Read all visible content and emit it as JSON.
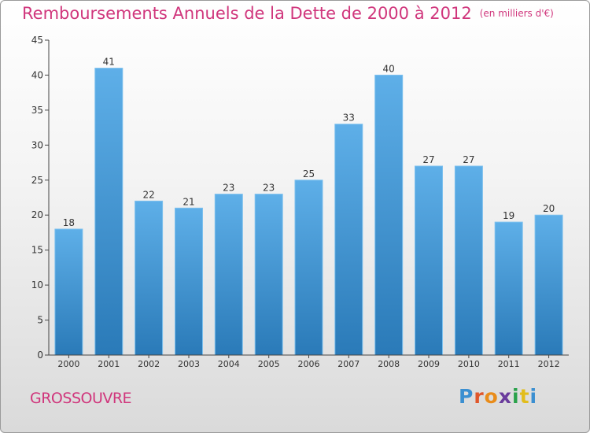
{
  "header": {
    "title": "Remboursements Annuels de la Dette de 2000 à 2012",
    "unit": "(en milliers d'€)"
  },
  "footer": {
    "commune": "GROSSOUVRE",
    "logo": "Proxiti"
  },
  "colors": {
    "accent": "#d0367c",
    "bar_top": "#5eafe8",
    "bar_bottom": "#2a7ab8",
    "axis": "#444444"
  },
  "chart_data": {
    "type": "bar",
    "title": "Remboursements Annuels de la Dette de 2000 à 2012",
    "categories": [
      "2000",
      "2001",
      "2002",
      "2003",
      "2004",
      "2005",
      "2006",
      "2007",
      "2008",
      "2009",
      "2010",
      "2011",
      "2012"
    ],
    "values": [
      18,
      41,
      22,
      21,
      23,
      23,
      25,
      33,
      40,
      27,
      27,
      19,
      20
    ],
    "ylim": [
      0,
      45
    ],
    "yticks": [
      0,
      5,
      10,
      15,
      20,
      25,
      30,
      35,
      40,
      45
    ],
    "xlabel": "",
    "ylabel": "",
    "grid": false,
    "data_labels": true
  }
}
